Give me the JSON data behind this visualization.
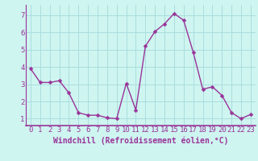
{
  "x": [
    0,
    1,
    2,
    3,
    4,
    5,
    6,
    7,
    8,
    9,
    10,
    11,
    12,
    13,
    14,
    15,
    16,
    17,
    18,
    19,
    20,
    21,
    22,
    23
  ],
  "y": [
    3.9,
    3.1,
    3.1,
    3.2,
    2.5,
    1.35,
    1.2,
    1.2,
    1.05,
    1.0,
    3.05,
    1.5,
    5.2,
    6.05,
    6.5,
    7.1,
    6.7,
    4.85,
    2.7,
    2.85,
    2.35,
    1.35,
    1.0,
    1.25
  ],
  "line_color": "#993399",
  "marker": "D",
  "marker_size": 2.5,
  "bg_color": "#cef5f0",
  "grid_color": "#aadddd",
  "xlabel": "Windchill (Refroidissement éolien,°C)",
  "ylabel": "",
  "xlim_min": -0.5,
  "xlim_max": 23.5,
  "ylim_min": 0.6,
  "ylim_max": 7.6,
  "yticks": [
    1,
    2,
    3,
    4,
    5,
    6,
    7
  ],
  "xticks": [
    0,
    1,
    2,
    3,
    4,
    5,
    6,
    7,
    8,
    9,
    10,
    11,
    12,
    13,
    14,
    15,
    16,
    17,
    18,
    19,
    20,
    21,
    22,
    23
  ],
  "xlabel_fontsize": 7.0,
  "tick_fontsize": 6.5,
  "axis_color": "#993399",
  "spine_color": "#993399",
  "line_width": 1.0
}
